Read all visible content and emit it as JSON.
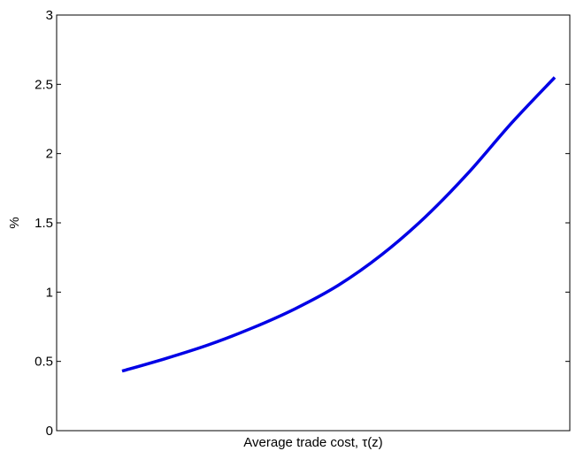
{
  "chart_data": {
    "type": "line",
    "xlabel": "Average trade cost, τ(z)",
    "ylabel": "%",
    "ylim": [
      0,
      3
    ],
    "yticks": [
      "0",
      "0.5",
      "1",
      "1.5",
      "2",
      "2.5",
      "3"
    ],
    "xticks": [],
    "grid": false,
    "legend": "none",
    "series": [
      {
        "color": "#0000e6",
        "x": [
          0,
          0.1,
          0.2,
          0.3,
          0.4,
          0.5,
          0.6,
          0.7,
          0.8,
          0.9,
          1.0
        ],
        "values": [
          0.43,
          0.52,
          0.62,
          0.74,
          0.88,
          1.05,
          1.27,
          1.54,
          1.86,
          2.22,
          2.55
        ]
      }
    ]
  }
}
